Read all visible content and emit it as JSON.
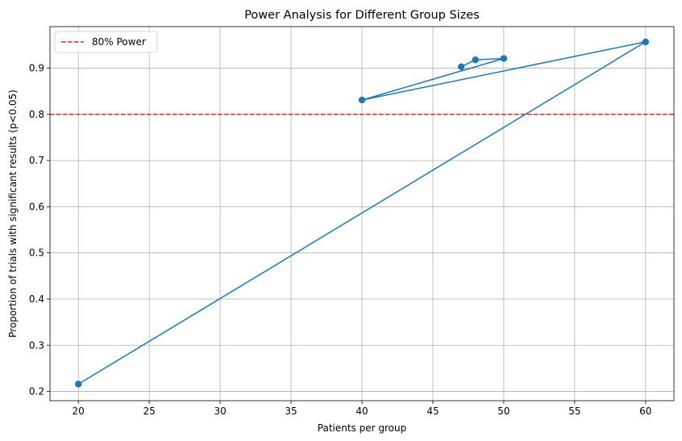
{
  "chart_data": {
    "type": "line",
    "title": "Power Analysis for Different Group Sizes",
    "xlabel": "Patients per group",
    "ylabel": "Proportion of trials with significant results (p<0.05)",
    "xlim": [
      18,
      62
    ],
    "ylim": [
      0.18,
      0.99
    ],
    "xticks": [
      20,
      25,
      30,
      35,
      40,
      45,
      50,
      55,
      60
    ],
    "yticks": [
      0.2,
      0.3,
      0.4,
      0.5,
      0.6,
      0.7,
      0.8,
      0.9
    ],
    "grid": true,
    "series": [
      {
        "color": "#1f77b4",
        "marker": "circle",
        "x": [
          20,
          60,
          40,
          50,
          48,
          47
        ],
        "y": [
          0.216,
          0.957,
          0.831,
          0.921,
          0.918,
          0.903
        ]
      }
    ],
    "reference_lines": [
      {
        "name": "80% Power",
        "y": 0.8,
        "color": "#d62728",
        "style": "dashed"
      }
    ],
    "legend": {
      "position": "top-left",
      "entries": [
        "80% Power"
      ]
    }
  }
}
